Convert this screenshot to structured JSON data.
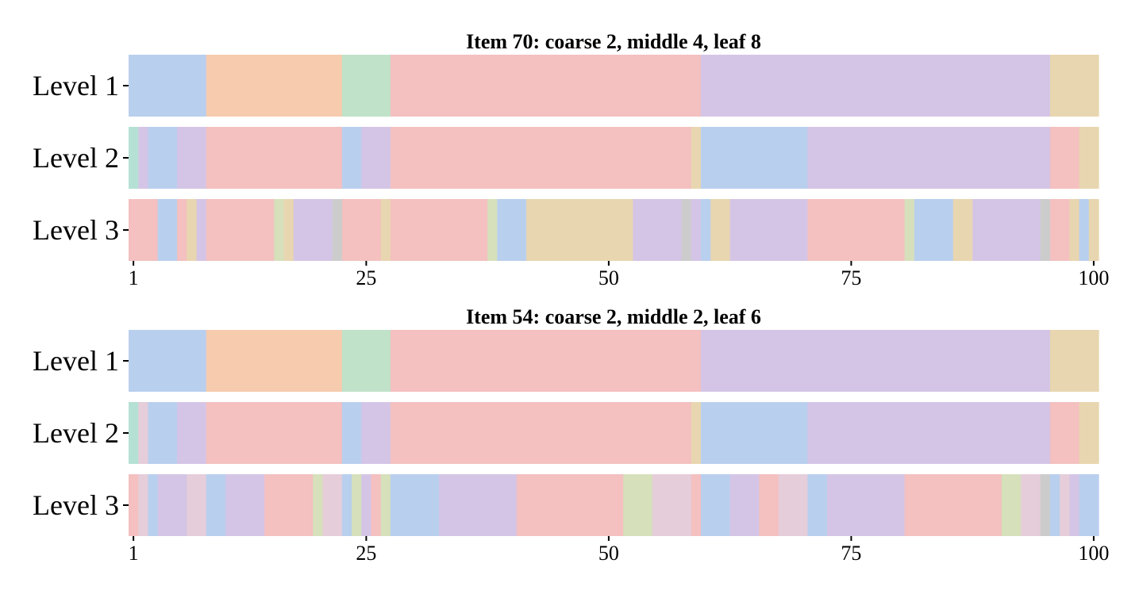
{
  "chart_data": {
    "type": "segmented-bar",
    "colors": {
      "blue": "#b9cfee",
      "orange": "#f6cbae",
      "green": "#c0e2c9",
      "pink": "#f4c0c0",
      "purple": "#d4c5e6",
      "tan": "#e8d6b0",
      "teal": "#b5e1d4",
      "olive": "#d6e0bb",
      "lightpink": "#e5cdda",
      "gray": "#cccccc"
    },
    "xticks": [
      1,
      25,
      50,
      75,
      100
    ],
    "xlim": [
      1,
      100
    ],
    "panels": [
      {
        "title": "Item 70: coarse 2, middle 4, leaf 8",
        "rows": [
          {
            "label": "Level 1",
            "segments": [
              [
                1,
                "blue"
              ],
              [
                9,
                "orange"
              ],
              [
                23,
                "green"
              ],
              [
                28,
                "pink"
              ],
              [
                60,
                "purple"
              ],
              [
                96,
                "tan"
              ],
              [
                101,
                null
              ]
            ]
          },
          {
            "label": "Level 2",
            "segments": [
              [
                1,
                "teal"
              ],
              [
                2,
                "purple"
              ],
              [
                3,
                "blue"
              ],
              [
                6,
                "purple"
              ],
              [
                9,
                "pink"
              ],
              [
                23,
                "blue"
              ],
              [
                25,
                "purple"
              ],
              [
                28,
                "pink"
              ],
              [
                59,
                "tan"
              ],
              [
                60,
                "blue"
              ],
              [
                71,
                "purple"
              ],
              [
                96,
                "pink"
              ],
              [
                99,
                "tan"
              ],
              [
                101,
                null
              ]
            ]
          },
          {
            "label": "Level 3",
            "segments": [
              [
                1,
                "pink"
              ],
              [
                4,
                "blue"
              ],
              [
                6,
                "pink"
              ],
              [
                7,
                "tan"
              ],
              [
                8,
                "purple"
              ],
              [
                9,
                "pink"
              ],
              [
                16,
                "olive"
              ],
              [
                17,
                "tan"
              ],
              [
                18,
                "purple"
              ],
              [
                22,
                "gray"
              ],
              [
                23,
                "pink"
              ],
              [
                27,
                "tan"
              ],
              [
                28,
                "pink"
              ],
              [
                38,
                "olive"
              ],
              [
                39,
                "blue"
              ],
              [
                42,
                "tan"
              ],
              [
                53,
                "purple"
              ],
              [
                58,
                "gray"
              ],
              [
                59,
                "purple"
              ],
              [
                60,
                "blue"
              ],
              [
                61,
                "tan"
              ],
              [
                63,
                "purple"
              ],
              [
                71,
                "pink"
              ],
              [
                81,
                "olive"
              ],
              [
                82,
                "blue"
              ],
              [
                86,
                "tan"
              ],
              [
                88,
                "purple"
              ],
              [
                95,
                "gray"
              ],
              [
                96,
                "pink"
              ],
              [
                98,
                "tan"
              ],
              [
                99,
                "blue"
              ],
              [
                100,
                "tan"
              ],
              [
                101,
                null
              ]
            ]
          }
        ]
      },
      {
        "title": "Item 54: coarse 2, middle 2, leaf 6",
        "rows": [
          {
            "label": "Level 1",
            "segments": [
              [
                1,
                "blue"
              ],
              [
                9,
                "orange"
              ],
              [
                23,
                "green"
              ],
              [
                28,
                "pink"
              ],
              [
                60,
                "purple"
              ],
              [
                96,
                "tan"
              ],
              [
                101,
                null
              ]
            ]
          },
          {
            "label": "Level 2",
            "segments": [
              [
                1,
                "teal"
              ],
              [
                2,
                "lightpink"
              ],
              [
                3,
                "blue"
              ],
              [
                6,
                "purple"
              ],
              [
                9,
                "pink"
              ],
              [
                23,
                "blue"
              ],
              [
                25,
                "purple"
              ],
              [
                28,
                "pink"
              ],
              [
                59,
                "tan"
              ],
              [
                60,
                "blue"
              ],
              [
                71,
                "purple"
              ],
              [
                96,
                "pink"
              ],
              [
                99,
                "tan"
              ],
              [
                101,
                null
              ]
            ]
          },
          {
            "label": "Level 3",
            "segments": [
              [
                1,
                "pink"
              ],
              [
                2,
                "lightpink"
              ],
              [
                3,
                "blue"
              ],
              [
                4,
                "purple"
              ],
              [
                7,
                "lightpink"
              ],
              [
                9,
                "blue"
              ],
              [
                11,
                "purple"
              ],
              [
                15,
                "pink"
              ],
              [
                20,
                "olive"
              ],
              [
                21,
                "lightpink"
              ],
              [
                23,
                "blue"
              ],
              [
                24,
                "olive"
              ],
              [
                25,
                "purple"
              ],
              [
                26,
                "pink"
              ],
              [
                27,
                "olive"
              ],
              [
                28,
                "blue"
              ],
              [
                33,
                "purple"
              ],
              [
                41,
                "pink"
              ],
              [
                52,
                "olive"
              ],
              [
                55,
                "lightpink"
              ],
              [
                59,
                "pink"
              ],
              [
                60,
                "blue"
              ],
              [
                63,
                "purple"
              ],
              [
                66,
                "pink"
              ],
              [
                68,
                "lightpink"
              ],
              [
                71,
                "blue"
              ],
              [
                73,
                "purple"
              ],
              [
                81,
                "pink"
              ],
              [
                91,
                "olive"
              ],
              [
                93,
                "lightpink"
              ],
              [
                95,
                "gray"
              ],
              [
                96,
                "blue"
              ],
              [
                97,
                "lightpink"
              ],
              [
                98,
                "purple"
              ],
              [
                99,
                "blue"
              ],
              [
                101,
                null
              ]
            ]
          }
        ]
      }
    ]
  }
}
